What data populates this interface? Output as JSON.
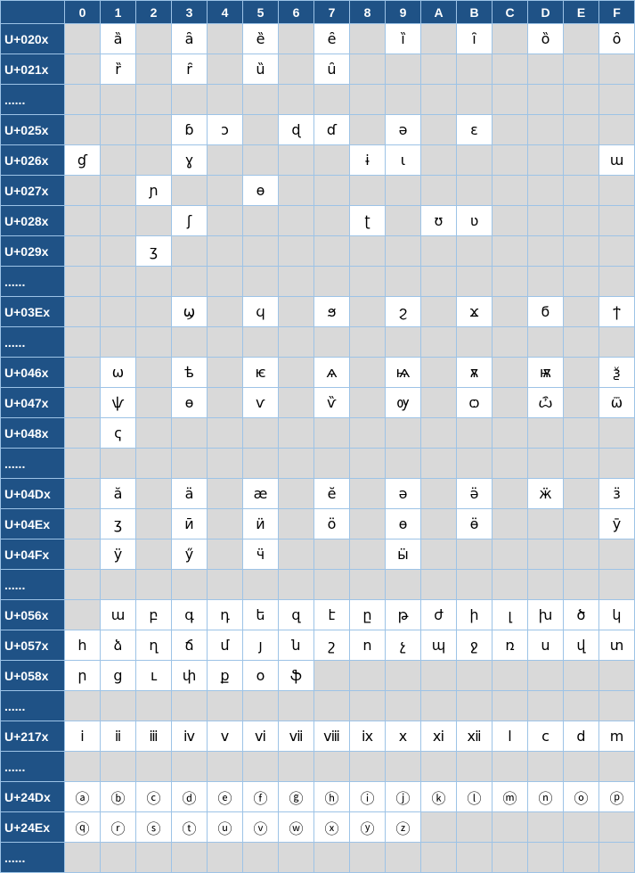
{
  "columns": [
    "0",
    "1",
    "2",
    "3",
    "4",
    "5",
    "6",
    "7",
    "8",
    "9",
    "A",
    "B",
    "C",
    "D",
    "E",
    "F"
  ],
  "rows": [
    {
      "label": "U+020x",
      "cells": [
        "",
        "ȁ",
        "",
        "ȃ",
        "",
        "ȅ",
        "",
        "ȇ",
        "",
        "ȉ",
        "",
        "ȋ",
        "",
        "ȍ",
        "",
        "ȏ"
      ]
    },
    {
      "label": "U+021x",
      "cells": [
        "",
        "ȑ",
        "",
        "ȓ",
        "",
        "ȕ",
        "",
        "ȗ",
        "",
        "",
        "",
        "",
        "",
        "",
        "",
        ""
      ]
    },
    {
      "label": "......",
      "cells": [
        "",
        "",
        "",
        "",
        "",
        "",
        "",
        "",
        "",
        "",
        "",
        "",
        "",
        "",
        "",
        ""
      ]
    },
    {
      "label": "U+025x",
      "cells": [
        "",
        "",
        "",
        "ɓ",
        "ɔ",
        "",
        "ɖ",
        "ɗ",
        "",
        "ə",
        "",
        "ɛ",
        "",
        "",
        "",
        ""
      ]
    },
    {
      "label": "U+026x",
      "cells": [
        "ɠ",
        "",
        "",
        "ɣ",
        "",
        "",
        "",
        "",
        "ɨ",
        "ɩ",
        "",
        "",
        "",
        "",
        "",
        "ɯ"
      ]
    },
    {
      "label": "U+027x",
      "cells": [
        "",
        "",
        "ɲ",
        "",
        "",
        "ɵ",
        "",
        "",
        "",
        "",
        "",
        "",
        "",
        "",
        "",
        ""
      ]
    },
    {
      "label": "U+028x",
      "cells": [
        "",
        "",
        "",
        "ʃ",
        "",
        "",
        "",
        "",
        "ʈ",
        "",
        "ʊ",
        "ʋ",
        "",
        "",
        "",
        ""
      ]
    },
    {
      "label": "U+029x",
      "cells": [
        "",
        "",
        "ʒ",
        "",
        "",
        "",
        "",
        "",
        "",
        "",
        "",
        "",
        "",
        "",
        "",
        ""
      ]
    },
    {
      "label": "......",
      "cells": [
        "",
        "",
        "",
        "",
        "",
        "",
        "",
        "",
        "",
        "",
        "",
        "",
        "",
        "",
        "",
        ""
      ]
    },
    {
      "label": "U+03Ex",
      "cells": [
        "",
        "",
        "",
        "ϣ",
        "",
        "ϥ",
        "",
        "ϧ",
        "",
        "ϩ",
        "",
        "ϫ",
        "",
        "ϭ",
        "",
        "ϯ"
      ]
    },
    {
      "label": "......",
      "cells": [
        "",
        "",
        "",
        "",
        "",
        "",
        "",
        "",
        "",
        "",
        "",
        "",
        "",
        "",
        "",
        ""
      ]
    },
    {
      "label": "U+046x",
      "cells": [
        "",
        "ѡ",
        "",
        "ѣ",
        "",
        "ѥ",
        "",
        "ѧ",
        "",
        "ѩ",
        "",
        "ѫ",
        "",
        "ѭ",
        "",
        "ѯ"
      ]
    },
    {
      "label": "U+047x",
      "cells": [
        "",
        "ѱ",
        "",
        "ѳ",
        "",
        "ѵ",
        "",
        "ѷ",
        "",
        "ѹ",
        "",
        "ѻ",
        "",
        "ѽ",
        "",
        "ѿ"
      ]
    },
    {
      "label": "U+048x",
      "cells": [
        "",
        "ҁ",
        "",
        "",
        "",
        "",
        "",
        "",
        "",
        "",
        "",
        "",
        "",
        "",
        "",
        ""
      ]
    },
    {
      "label": "......",
      "cells": [
        "",
        "",
        "",
        "",
        "",
        "",
        "",
        "",
        "",
        "",
        "",
        "",
        "",
        "",
        "",
        ""
      ]
    },
    {
      "label": "U+04Dx",
      "cells": [
        "",
        "ӑ",
        "",
        "ӓ",
        "",
        "ӕ",
        "",
        "ӗ",
        "",
        "ә",
        "",
        "ӛ",
        "",
        "ӝ",
        "",
        "ӟ"
      ]
    },
    {
      "label": "U+04Ex",
      "cells": [
        "",
        "ӡ",
        "",
        "ӣ",
        "",
        "ӥ",
        "",
        "ӧ",
        "",
        "ө",
        "",
        "ӫ",
        "",
        "",
        "",
        "ӯ"
      ]
    },
    {
      "label": "U+04Fx",
      "cells": [
        "",
        "ӱ",
        "",
        "ӳ",
        "",
        "ӵ",
        "",
        "",
        "",
        "ӹ",
        "",
        "",
        "",
        "",
        "",
        ""
      ]
    },
    {
      "label": "......",
      "cells": [
        "",
        "",
        "",
        "",
        "",
        "",
        "",
        "",
        "",
        "",
        "",
        "",
        "",
        "",
        "",
        ""
      ]
    },
    {
      "label": "U+056x",
      "cells": [
        "",
        "ա",
        "բ",
        "գ",
        "դ",
        "ե",
        "զ",
        "է",
        "ը",
        "թ",
        "ժ",
        "ի",
        "լ",
        "խ",
        "ծ",
        "կ"
      ]
    },
    {
      "label": "U+057x",
      "cells": [
        "հ",
        "ձ",
        "ղ",
        "ճ",
        "մ",
        "յ",
        "ն",
        "շ",
        "ո",
        "չ",
        "պ",
        "ջ",
        "ռ",
        "ս",
        "վ",
        "տ"
      ]
    },
    {
      "label": "U+058x",
      "cells": [
        "ր",
        "ց",
        "ւ",
        "փ",
        "ք",
        "օ",
        "ֆ",
        "",
        "",
        "",
        "",
        "",
        "",
        "",
        "",
        ""
      ]
    },
    {
      "label": "......",
      "cells": [
        "",
        "",
        "",
        "",
        "",
        "",
        "",
        "",
        "",
        "",
        "",
        "",
        "",
        "",
        "",
        ""
      ]
    },
    {
      "label": "U+217x",
      "cells": [
        "ⅰ",
        "ⅱ",
        "ⅲ",
        "ⅳ",
        "ⅴ",
        "ⅵ",
        "ⅶ",
        "ⅷ",
        "ⅸ",
        "ⅹ",
        "ⅺ",
        "ⅻ",
        "ⅼ",
        "ⅽ",
        "ⅾ",
        "ⅿ"
      ]
    },
    {
      "label": "......",
      "cells": [
        "",
        "",
        "",
        "",
        "",
        "",
        "",
        "",
        "",
        "",
        "",
        "",
        "",
        "",
        "",
        ""
      ]
    },
    {
      "label": "U+24Dx",
      "cells": [
        "ⓐ",
        "ⓑ",
        "ⓒ",
        "ⓓ",
        "ⓔ",
        "ⓕ",
        "ⓖ",
        "ⓗ",
        "ⓘ",
        "ⓙ",
        "ⓚ",
        "ⓛ",
        "ⓜ",
        "ⓝ",
        "ⓞ",
        "ⓟ"
      ]
    },
    {
      "label": "U+24Ex",
      "cells": [
        "ⓠ",
        "ⓡ",
        "ⓢ",
        "ⓣ",
        "ⓤ",
        "ⓥ",
        "ⓦ",
        "ⓧ",
        "ⓨ",
        "ⓩ",
        "",
        "",
        "",
        "",
        "",
        ""
      ]
    },
    {
      "label": "......",
      "cells": [
        "",
        "",
        "",
        "",
        "",
        "",
        "",
        "",
        "",
        "",
        "",
        "",
        "",
        "",
        "",
        ""
      ]
    }
  ],
  "colors": {
    "header": "#1f5286",
    "empty_cell": "#d9d9d9",
    "filled_cell": "#ffffff",
    "grid": "#9dc3e6"
  }
}
